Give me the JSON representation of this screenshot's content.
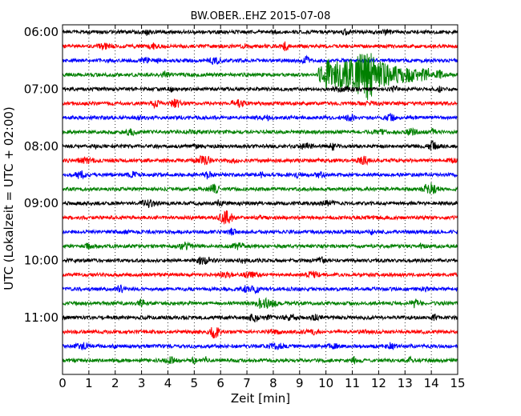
{
  "chart_data": {
    "type": "line",
    "title": "BW.OBER..EHZ 2015-07-08",
    "xlabel": "Zeit  [min]",
    "ylabel": "UTC (Lokalzeit = UTC + 02:00)",
    "xlim": [
      0,
      15
    ],
    "x_ticks": [
      "0",
      "1",
      "2",
      "3",
      "4",
      "5",
      "6",
      "7",
      "8",
      "9",
      "10",
      "11",
      "12",
      "13",
      "14",
      "15"
    ],
    "y_ticks": [
      {
        "label": "06:00",
        "trace": 0
      },
      {
        "label": "07:00",
        "trace": 4
      },
      {
        "label": "08:00",
        "trace": 8
      },
      {
        "label": "09:00",
        "trace": 12
      },
      {
        "label": "10:00",
        "trace": 16
      },
      {
        "label": "11:00",
        "trace": 20
      }
    ],
    "grid": "vertical dotted at each minute",
    "trace_interval_min": 15,
    "colors": [
      "#000000",
      "#ff0000",
      "#0000ff",
      "#008000"
    ],
    "traces": [
      {
        "start": "06:00",
        "color": "#000000"
      },
      {
        "start": "06:15",
        "color": "#ff0000"
      },
      {
        "start": "06:30",
        "color": "#0000ff"
      },
      {
        "start": "06:45",
        "color": "#008000",
        "event": {
          "start_min": 9.7,
          "peak_min": 11.6,
          "end_min": 13.9,
          "note": "strong signal"
        }
      },
      {
        "start": "07:00",
        "color": "#000000"
      },
      {
        "start": "07:15",
        "color": "#ff0000"
      },
      {
        "start": "07:30",
        "color": "#0000ff"
      },
      {
        "start": "07:45",
        "color": "#008000"
      },
      {
        "start": "08:00",
        "color": "#000000"
      },
      {
        "start": "08:15",
        "color": "#ff0000"
      },
      {
        "start": "08:30",
        "color": "#0000ff"
      },
      {
        "start": "08:45",
        "color": "#008000"
      },
      {
        "start": "09:00",
        "color": "#000000"
      },
      {
        "start": "09:15",
        "color": "#ff0000"
      },
      {
        "start": "09:30",
        "color": "#0000ff"
      },
      {
        "start": "09:45",
        "color": "#008000"
      },
      {
        "start": "10:00",
        "color": "#000000"
      },
      {
        "start": "10:15",
        "color": "#ff0000"
      },
      {
        "start": "10:30",
        "color": "#0000ff"
      },
      {
        "start": "10:45",
        "color": "#008000"
      },
      {
        "start": "11:00",
        "color": "#000000"
      },
      {
        "start": "11:15",
        "color": "#ff0000"
      },
      {
        "start": "11:30",
        "color": "#0000ff"
      },
      {
        "start": "11:45",
        "color": "#008000"
      }
    ]
  }
}
